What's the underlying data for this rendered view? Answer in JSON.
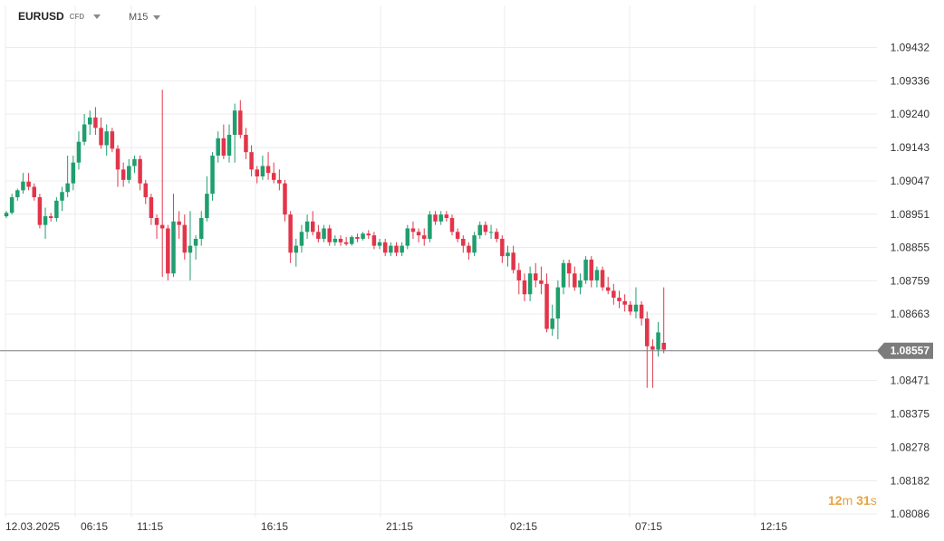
{
  "toolbar": {
    "symbol": "EURUSD",
    "instrument_type": "CFD",
    "timeframe": "M15"
  },
  "countdown": {
    "minutes": "12",
    "min_unit": "m",
    "seconds": "31",
    "sec_unit": "s"
  },
  "colors": {
    "up": "#1f9e6e",
    "down": "#e2354a",
    "grid": "#ececec",
    "price_line": "#7c7c7c",
    "price_tag": "#7c7c7c",
    "axis_text": "#333333",
    "countdown": "#e8a33d"
  },
  "chart_data": {
    "type": "candlestick",
    "symbol": "EURUSD",
    "timeframe": "M15",
    "yticks": [
      1.09432,
      1.09336,
      1.0924,
      1.09143,
      1.09047,
      1.08951,
      1.08855,
      1.08759,
      1.08663,
      1.08471,
      1.08375,
      1.08278,
      1.08182,
      1.08086
    ],
    "ylim": [
      1.08076,
      1.09475
    ],
    "current_price": 1.08557,
    "current_price_label": "1.08557",
    "xticks": [
      "12.03.2025",
      "06:15",
      "11:15",
      "16:15",
      "21:15",
      "02:15",
      "07:15",
      "12:15"
    ],
    "grid": true,
    "candles": [
      [
        1.08945,
        1.0896,
        1.0894,
        1.08955
      ],
      [
        1.08955,
        1.0901,
        1.0895,
        1.09
      ],
      [
        1.09,
        1.09025,
        1.0899,
        1.0902
      ],
      [
        1.0902,
        1.0907,
        1.0901,
        1.09045
      ],
      [
        1.09045,
        1.0907,
        1.0902,
        1.0903
      ],
      [
        1.0903,
        1.0904,
        1.0899,
        1.09
      ],
      [
        1.09,
        1.0901,
        1.0891,
        1.0892
      ],
      [
        1.0892,
        1.0897,
        1.0888,
        1.08945
      ],
      [
        1.08945,
        1.08955,
        1.0893,
        1.0894
      ],
      [
        1.0894,
        1.09,
        1.0893,
        1.0899
      ],
      [
        1.0899,
        1.0903,
        1.0896,
        1.09015
      ],
      [
        1.09015,
        1.0912,
        1.09,
        1.0904
      ],
      [
        1.0904,
        1.0912,
        1.0902,
        1.091
      ],
      [
        1.091,
        1.0919,
        1.0908,
        1.0916
      ],
      [
        1.0916,
        1.0924,
        1.0915,
        1.0921
      ],
      [
        1.0921,
        1.0925,
        1.0918,
        1.0923
      ],
      [
        1.0923,
        1.0926,
        1.0918,
        1.092
      ],
      [
        1.092,
        1.0923,
        1.0914,
        1.0915
      ],
      [
        1.0915,
        1.0921,
        1.0912,
        1.0919
      ],
      [
        1.0919,
        1.092,
        1.0913,
        1.0914
      ],
      [
        1.0914,
        1.0915,
        1.0903,
        1.0908
      ],
      [
        1.0908,
        1.091,
        1.0903,
        1.0905
      ],
      [
        1.0905,
        1.0911,
        1.0904,
        1.0909
      ],
      [
        1.0909,
        1.0912,
        1.0907,
        1.0911
      ],
      [
        1.0911,
        1.0912,
        1.0902,
        1.0904
      ],
      [
        1.0904,
        1.0905,
        1.0898,
        1.09
      ],
      [
        1.09,
        1.0901,
        1.0892,
        1.0894
      ],
      [
        1.0894,
        1.0895,
        1.0888,
        1.0892
      ],
      [
        1.0892,
        1.0931,
        1.0877,
        1.0891
      ],
      [
        1.0891,
        1.0892,
        1.0876,
        1.0878
      ],
      [
        1.0878,
        1.0901,
        1.0877,
        1.0893
      ],
      [
        1.0893,
        1.0896,
        1.0888,
        1.0892
      ],
      [
        1.0892,
        1.0895,
        1.0882,
        1.0884
      ],
      [
        1.0884,
        1.0896,
        1.0876,
        1.0886
      ],
      [
        1.0886,
        1.0889,
        1.0882,
        1.0888
      ],
      [
        1.0888,
        1.0896,
        1.0886,
        1.0894
      ],
      [
        1.0894,
        1.0906,
        1.0893,
        1.0901
      ],
      [
        1.0901,
        1.0913,
        1.0899,
        1.0912
      ],
      [
        1.0912,
        1.0919,
        1.091,
        1.0917
      ],
      [
        1.0917,
        1.0921,
        1.0911,
        1.0912
      ],
      [
        1.0912,
        1.0921,
        1.091,
        1.0918
      ],
      [
        1.0918,
        1.0927,
        1.091,
        1.0925
      ],
      [
        1.0925,
        1.0928,
        1.0917,
        1.0918
      ],
      [
        1.0918,
        1.092,
        1.0911,
        1.0913
      ],
      [
        1.0913,
        1.0915,
        1.0906,
        1.0908
      ],
      [
        1.0908,
        1.0909,
        1.0904,
        1.0906
      ],
      [
        1.0906,
        1.0912,
        1.0905,
        1.0909
      ],
      [
        1.0909,
        1.0913,
        1.0905,
        1.0907
      ],
      [
        1.0907,
        1.091,
        1.0904,
        1.0905
      ],
      [
        1.0905,
        1.0908,
        1.0902,
        1.0904
      ],
      [
        1.0904,
        1.0905,
        1.0893,
        1.0895
      ],
      [
        1.0895,
        1.0896,
        1.0881,
        1.0884
      ],
      [
        1.0884,
        1.0888,
        1.088,
        1.0886
      ],
      [
        1.0886,
        1.0892,
        1.0884,
        1.089
      ],
      [
        1.089,
        1.0895,
        1.0888,
        1.0893
      ],
      [
        1.0893,
        1.0896,
        1.0889,
        1.089
      ],
      [
        1.089,
        1.0892,
        1.0887,
        1.0888
      ],
      [
        1.0888,
        1.0892,
        1.0887,
        1.0891
      ],
      [
        1.0891,
        1.0892,
        1.0886,
        1.0887
      ],
      [
        1.0887,
        1.0889,
        1.0886,
        1.0888
      ],
      [
        1.0888,
        1.0889,
        1.0886,
        1.0887
      ],
      [
        1.0887,
        1.08885,
        1.0886,
        1.08865
      ],
      [
        1.08865,
        1.0889,
        1.0886,
        1.08885
      ],
      [
        1.08885,
        1.08895,
        1.0887,
        1.0888
      ],
      [
        1.0888,
        1.089,
        1.08875,
        1.08895
      ],
      [
        1.08895,
        1.08905,
        1.0888,
        1.0889
      ],
      [
        1.0889,
        1.089,
        1.0885,
        1.0886
      ],
      [
        1.0886,
        1.0888,
        1.0885,
        1.0887
      ],
      [
        1.0887,
        1.0888,
        1.0883,
        1.0884
      ],
      [
        1.0884,
        1.0887,
        1.0883,
        1.0886
      ],
      [
        1.0886,
        1.0887,
        1.0883,
        1.0884
      ],
      [
        1.0884,
        1.0887,
        1.0883,
        1.0886
      ],
      [
        1.0886,
        1.0892,
        1.0885,
        1.0891
      ],
      [
        1.0891,
        1.0893,
        1.0888,
        1.089
      ],
      [
        1.089,
        1.0891,
        1.0887,
        1.0889
      ],
      [
        1.0889,
        1.0891,
        1.0886,
        1.0888
      ],
      [
        1.0888,
        1.0896,
        1.0887,
        1.0895
      ],
      [
        1.0895,
        1.0896,
        1.0892,
        1.0893
      ],
      [
        1.0893,
        1.0896,
        1.0892,
        1.0895
      ],
      [
        1.0895,
        1.0896,
        1.0893,
        1.0894
      ],
      [
        1.0894,
        1.0895,
        1.0889,
        1.089
      ],
      [
        1.089,
        1.0891,
        1.0887,
        1.0888
      ],
      [
        1.0888,
        1.0889,
        1.0884,
        1.0886
      ],
      [
        1.0886,
        1.0887,
        1.0882,
        1.0884
      ],
      [
        1.0884,
        1.089,
        1.0883,
        1.0889
      ],
      [
        1.0889,
        1.0893,
        1.0888,
        1.0892
      ],
      [
        1.0892,
        1.0893,
        1.0889,
        1.089
      ],
      [
        1.089,
        1.0892,
        1.0888,
        1.089
      ],
      [
        1.089,
        1.0891,
        1.0887,
        1.0888
      ],
      [
        1.0888,
        1.0889,
        1.0881,
        1.0883
      ],
      [
        1.0883,
        1.0886,
        1.088,
        1.0884
      ],
      [
        1.0884,
        1.0886,
        1.0878,
        1.0879
      ],
      [
        1.0879,
        1.0881,
        1.0872,
        1.0876
      ],
      [
        1.0876,
        1.0878,
        1.087,
        1.0872
      ],
      [
        1.0872,
        1.088,
        1.087,
        1.0878
      ],
      [
        1.0878,
        1.0881,
        1.0874,
        1.0876
      ],
      [
        1.0876,
        1.088,
        1.0872,
        1.0875
      ],
      [
        1.0875,
        1.0878,
        1.0861,
        1.0862
      ],
      [
        1.0862,
        1.0869,
        1.086,
        1.0865
      ],
      [
        1.0865,
        1.0876,
        1.0859,
        1.0874
      ],
      [
        1.0874,
        1.0882,
        1.0872,
        1.0881
      ],
      [
        1.0881,
        1.0882,
        1.0874,
        1.0878
      ],
      [
        1.0878,
        1.088,
        1.0873,
        1.0874
      ],
      [
        1.0874,
        1.0878,
        1.0872,
        1.0876
      ],
      [
        1.0876,
        1.0883,
        1.0875,
        1.0882
      ],
      [
        1.0882,
        1.0883,
        1.0874,
        1.0876
      ],
      [
        1.0876,
        1.088,
        1.0874,
        1.0879
      ],
      [
        1.0879,
        1.088,
        1.0873,
        1.0874
      ],
      [
        1.0874,
        1.0877,
        1.0872,
        1.0873
      ],
      [
        1.0873,
        1.0875,
        1.0869,
        1.0871
      ],
      [
        1.0871,
        1.0873,
        1.0868,
        1.087
      ],
      [
        1.087,
        1.0872,
        1.0867,
        1.0869
      ],
      [
        1.0869,
        1.087,
        1.0866,
        1.0867
      ],
      [
        1.0867,
        1.0874,
        1.0865,
        1.0869
      ],
      [
        1.0869,
        1.087,
        1.0863,
        1.0865
      ],
      [
        1.0865,
        1.0867,
        1.0845,
        1.0857
      ],
      [
        1.0857,
        1.0859,
        1.0845,
        1.0856
      ],
      [
        1.0856,
        1.0864,
        1.0854,
        1.0861
      ],
      [
        1.0858,
        1.0874,
        1.0855,
        1.0856
      ]
    ]
  }
}
